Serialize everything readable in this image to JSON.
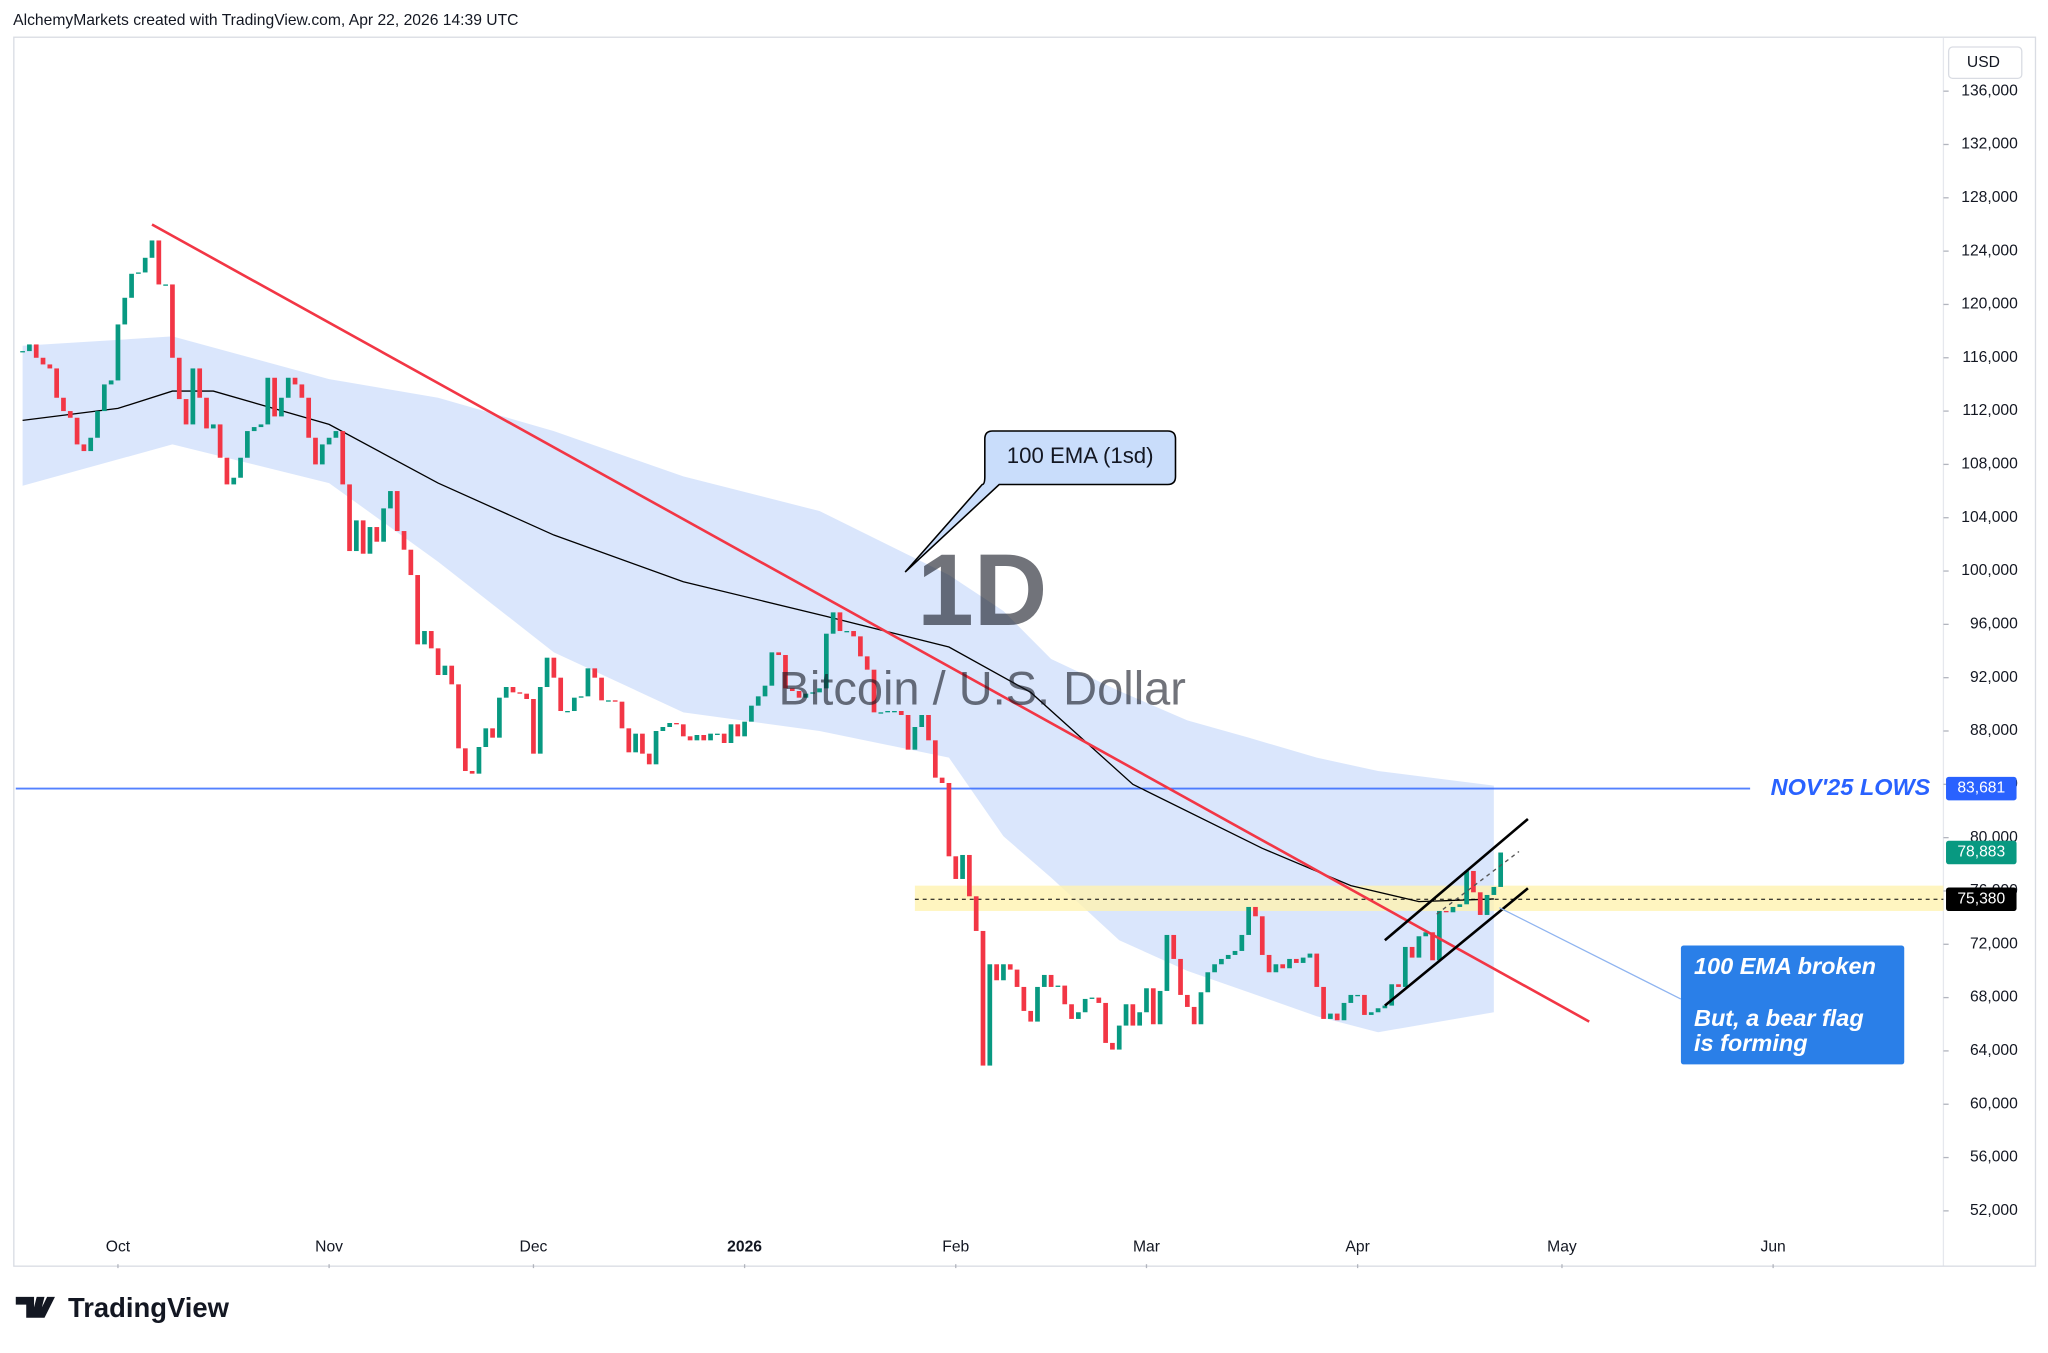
{
  "header": "AlchemyMarkets created with TradingView.com, Apr 22, 2026 14:39 UTC",
  "brand": "TradingView",
  "chart_data": {
    "type": "candlestick",
    "watermark": "1D",
    "watermark_subtitle": "Bitcoin / U.S. Dollar",
    "currency": "USD",
    "up_color": "#089981",
    "down_color": "#f23645",
    "xlim": [
      -1,
      282
    ],
    "xticks": [
      {
        "value": 14,
        "label": "Oct"
      },
      {
        "value": 45,
        "label": "Nov"
      },
      {
        "value": 75,
        "label": "Dec"
      },
      {
        "value": 106,
        "label": "2026"
      },
      {
        "value": 137,
        "label": "Feb"
      },
      {
        "value": 165,
        "label": "Mar"
      },
      {
        "value": 196,
        "label": "Apr"
      },
      {
        "value": 226,
        "label": "May"
      },
      {
        "value": 257,
        "label": "Jun"
      }
    ],
    "ylim": [
      48000,
      139900
    ],
    "yticks": [
      {
        "value": 52000,
        "label": "52,000"
      },
      {
        "value": 56000,
        "label": "56,000"
      },
      {
        "value": 60000,
        "label": "60,000"
      },
      {
        "value": 64000,
        "label": "64,000"
      },
      {
        "value": 68000,
        "label": "68,000"
      },
      {
        "value": 72000,
        "label": "72,000"
      },
      {
        "value": 76000,
        "label": "76,000"
      },
      {
        "value": 80000,
        "label": "80,000"
      },
      {
        "value": 84000,
        "label": "84,000"
      },
      {
        "value": 88000,
        "label": "88,000"
      },
      {
        "value": 92000,
        "label": "92,000"
      },
      {
        "value": 96000,
        "label": "96,000"
      },
      {
        "value": 100000,
        "label": "100,000"
      },
      {
        "value": 104000,
        "label": "104,000"
      },
      {
        "value": 108000,
        "label": "108,000"
      },
      {
        "value": 112000,
        "label": "112,000"
      },
      {
        "value": 116000,
        "label": "116,000"
      },
      {
        "value": 120000,
        "label": "120,000"
      },
      {
        "value": 124000,
        "label": "124,000"
      },
      {
        "value": 128000,
        "label": "128,000"
      },
      {
        "value": 132000,
        "label": "132,000"
      },
      {
        "value": 136000,
        "label": "136,000"
      }
    ],
    "values": [
      116500,
      117000,
      116000,
      115500,
      115200,
      113000,
      112000,
      111500,
      109500,
      109000,
      110000,
      112000,
      114000,
      114300,
      118500,
      120500,
      122300,
      122400,
      123500,
      124800,
      121500,
      121500,
      116000,
      112900,
      111000,
      115200,
      113000,
      110700,
      111000,
      108500,
      106500,
      107000,
      108500,
      110500,
      110800,
      111000,
      114500,
      111600,
      113000,
      114500,
      114000,
      113000,
      110000,
      108000,
      109500,
      110000,
      110500,
      106500,
      101500,
      103800,
      101300,
      103300,
      102200,
      104700,
      106000,
      103000,
      101600,
      99700,
      94500,
      95500,
      94200,
      92200,
      92900,
      91500,
      86700,
      85000,
      84800,
      86800,
      88200,
      87500,
      90500,
      91300,
      90900,
      90800,
      90400,
      86300,
      91300,
      93500,
      92000,
      89500,
      89500,
      90500,
      90600,
      92700,
      92000,
      90300,
      90300,
      90200,
      88200,
      86400,
      87800,
      86300,
      85500,
      88000,
      88300,
      88600,
      88500,
      87600,
      87300,
      87700,
      87300,
      87800,
      87800,
      87100,
      88500,
      87600,
      88700,
      89900,
      90600,
      91400,
      93900,
      93700,
      91200,
      91000,
      90500,
      90800,
      90900,
      91200,
      95300,
      96900,
      95500,
      95500,
      95100,
      93600,
      92600,
      89400,
      89400,
      89500,
      89500,
      89200,
      86600,
      88300,
      89200,
      87300,
      84500,
      84100,
      78600,
      76900,
      78700,
      75600,
      73000,
      62900,
      70500,
      69300,
      70500,
      70100,
      68800,
      67000,
      66200,
      68800,
      69700,
      68800,
      68900,
      67500,
      66400,
      66900,
      67900,
      68000,
      67600,
      64600,
      64100,
      65900,
      67500,
      65900,
      66900,
      68700,
      66000,
      68500,
      72700,
      70900,
      68200,
      67300,
      66000,
      68400,
      69900,
      70500,
      70900,
      71200,
      71500,
      72700,
      74800,
      74100,
      71200,
      69900,
      70500,
      70200,
      70900,
      70600,
      71000,
      71300,
      68800,
      66400,
      66800,
      66300,
      67600,
      68200,
      68200,
      66700,
      66900,
      67200,
      67400,
      69000,
      68800,
      71800,
      71000,
      72600,
      72900,
      70800,
      74500,
      74400,
      74800,
      75000,
      77500,
      75900,
      74200,
      75700,
      76300,
      78883
    ],
    "ema": {
      "color": "#000000",
      "x": [
        0,
        14,
        22,
        28,
        45,
        61,
        78,
        97,
        118,
        136,
        148,
        163,
        182,
        195,
        205,
        216
      ],
      "values": [
        111300,
        112200,
        113500,
        113500,
        111000,
        106600,
        102700,
        99200,
        96600,
        94300,
        90900,
        84000,
        79200,
        76400,
        75200,
        75400
      ]
    },
    "band": {
      "color": "#d4e2fc",
      "x": [
        0,
        22,
        45,
        61,
        78,
        97,
        117,
        136,
        144,
        151,
        161,
        171,
        180,
        190,
        199,
        216
      ],
      "upper": [
        116900,
        117600,
        114400,
        113000,
        110500,
        107100,
        104500,
        99700,
        97000,
        93400,
        91000,
        88800,
        87500,
        86000,
        85000,
        83900
      ],
      "lower": [
        106400,
        109500,
        106600,
        100700,
        93900,
        89400,
        88000,
        86000,
        80100,
        77000,
        72300,
        70000,
        68400,
        66600,
        65400,
        66900
      ]
    },
    "trendline": {
      "color": "#f23645",
      "x": [
        19,
        230
      ],
      "values": [
        126000,
        66200
      ]
    },
    "channel": [
      {
        "x": [
          200,
          221
        ],
        "values": [
          72300,
          81400
        ]
      },
      {
        "x": [
          200,
          221
        ],
        "values": [
          67400,
          76200
        ]
      }
    ],
    "zone": {
      "color": "#fff3b0",
      "x": [
        131,
        282
      ],
      "values": [
        74500,
        76400
      ]
    },
    "support": {
      "value": 83681,
      "label": "83,681",
      "text": "NOV'25 LOWS",
      "color": "#2962ff"
    },
    "last_price": {
      "value": 78883,
      "label": "78,883",
      "color": "#089981"
    },
    "level": {
      "value": 75380,
      "label": "75,380",
      "color": "#000000"
    },
    "callout": {
      "text": "100 EMA (1sd)",
      "color": "#c9ddfb"
    },
    "note": {
      "title": "100 EMA broken",
      "text": [
        "But, a bear flag",
        "is forming"
      ],
      "color": "#2a7fe8"
    }
  }
}
